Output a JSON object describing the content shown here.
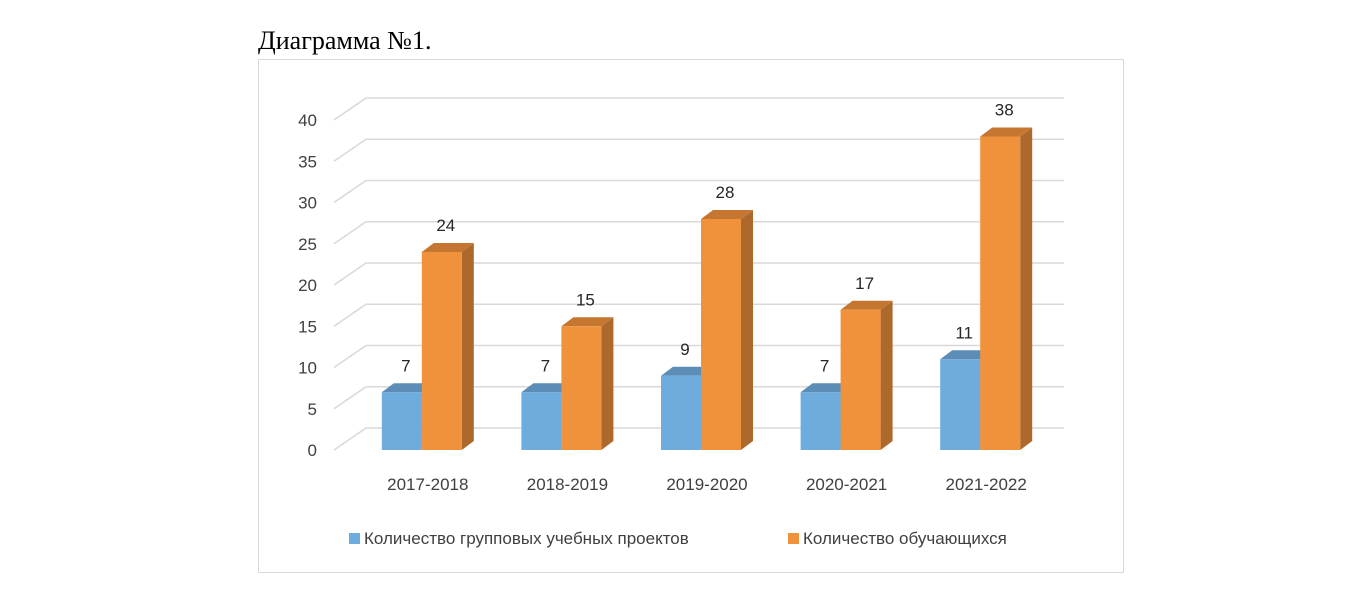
{
  "caption": "Диаграмма №1.",
  "chart_data": {
    "type": "bar",
    "style": "3d-clustered-column",
    "categories": [
      "2017-2018",
      "2018-2019",
      "2019-2020",
      "2020-2021",
      "2021-2022"
    ],
    "series": [
      {
        "name": "Количество групповых учебных проектов",
        "values": [
          7,
          7,
          9,
          7,
          11
        ],
        "color": "#6FACDE"
      },
      {
        "name": "Количество обучающихся",
        "values": [
          24,
          15,
          28,
          17,
          38
        ],
        "color": "#F0913C"
      }
    ],
    "yticks": [
      0,
      5,
      10,
      15,
      20,
      25,
      30,
      35,
      40
    ],
    "ylim": [
      0,
      40
    ],
    "grid": true,
    "data_labels": true,
    "legend_position": "bottom"
  }
}
